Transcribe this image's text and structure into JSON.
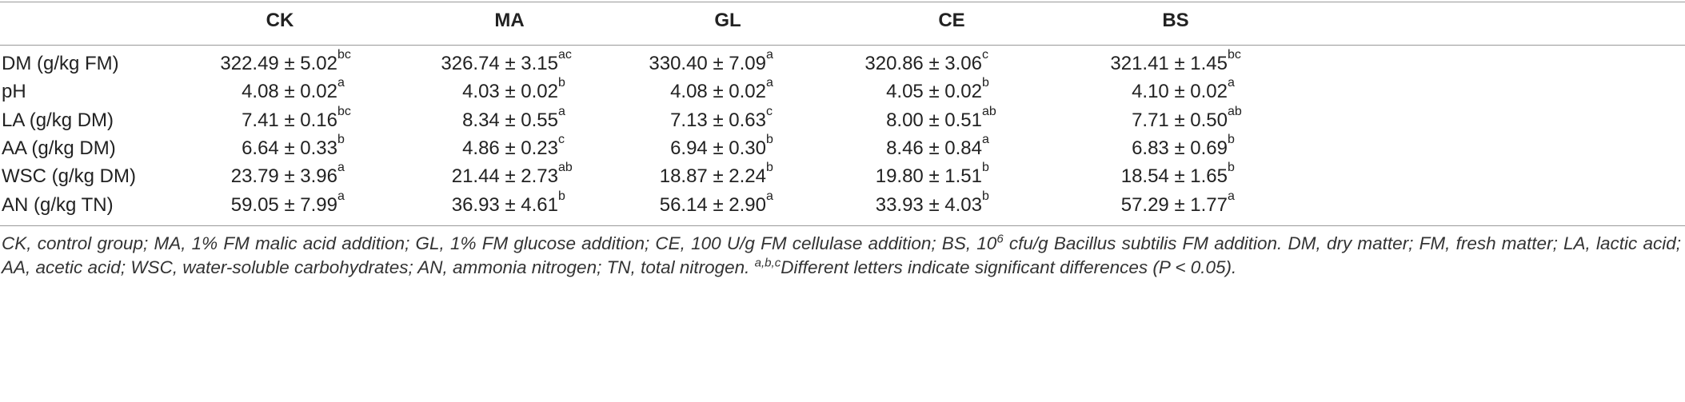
{
  "table": {
    "columns": [
      "CK",
      "MA",
      "GL",
      "CE",
      "BS"
    ],
    "rows": [
      {
        "label": "DM (g/kg FM)",
        "cells": [
          {
            "value": "322.49 ± 5.02",
            "sup": "bc"
          },
          {
            "value": "326.74 ± 3.15",
            "sup": "ac"
          },
          {
            "value": "330.40 ± 7.09",
            "sup": "a"
          },
          {
            "value": "320.86 ± 3.06",
            "sup": "c"
          },
          {
            "value": "321.41 ± 1.45",
            "sup": "bc"
          }
        ]
      },
      {
        "label": "pH",
        "cells": [
          {
            "value": "4.08 ± 0.02",
            "sup": "a"
          },
          {
            "value": "4.03 ± 0.02",
            "sup": "b"
          },
          {
            "value": "4.08 ± 0.02",
            "sup": "a"
          },
          {
            "value": "4.05 ± 0.02",
            "sup": "b"
          },
          {
            "value": "4.10 ± 0.02",
            "sup": "a"
          }
        ]
      },
      {
        "label": "LA (g/kg DM)",
        "cells": [
          {
            "value": "7.41 ± 0.16",
            "sup": "bc"
          },
          {
            "value": "8.34 ± 0.55",
            "sup": "a"
          },
          {
            "value": "7.13 ± 0.63",
            "sup": "c"
          },
          {
            "value": "8.00 ± 0.51",
            "sup": "ab"
          },
          {
            "value": "7.71 ± 0.50",
            "sup": "ab"
          }
        ]
      },
      {
        "label": "AA (g/kg DM)",
        "cells": [
          {
            "value": "6.64 ± 0.33",
            "sup": "b"
          },
          {
            "value": "4.86 ± 0.23",
            "sup": "c"
          },
          {
            "value": "6.94 ± 0.30",
            "sup": "b"
          },
          {
            "value": "8.46 ± 0.84",
            "sup": "a"
          },
          {
            "value": "6.83 ± 0.69",
            "sup": "b"
          }
        ]
      },
      {
        "label": "WSC (g/kg DM)",
        "cells": [
          {
            "value": "23.79 ± 3.96",
            "sup": "a"
          },
          {
            "value": "21.44 ± 2.73",
            "sup": "ab"
          },
          {
            "value": "18.87 ± 2.24",
            "sup": "b"
          },
          {
            "value": "19.80 ± 1.51",
            "sup": "b"
          },
          {
            "value": "18.54 ± 1.65",
            "sup": "b"
          }
        ]
      },
      {
        "label": "AN (g/kg TN)",
        "cells": [
          {
            "value": "59.05 ± 7.99",
            "sup": "a"
          },
          {
            "value": "36.93 ± 4.61",
            "sup": "b"
          },
          {
            "value": "56.14 ± 2.90",
            "sup": "a"
          },
          {
            "value": "33.93 ± 4.03",
            "sup": "b"
          },
          {
            "value": "57.29 ± 1.77",
            "sup": "a"
          }
        ]
      }
    ]
  },
  "footnote": [
    {
      "text": "CK, control group; MA, 1% FM malic acid addition; GL, 1% FM glucose addition; CE, 100 U/g FM cellulase addition; BS, 10"
    },
    {
      "sup": "6"
    },
    {
      "text": " cfu/g Bacillus subtilis FM addition. DM, dry matter; FM, fresh matter; LA, lactic acid; AA, acetic acid; WSC, water-soluble carbohydrates; AN, ammonia nitrogen; TN, total nitrogen. "
    },
    {
      "sup": "a,b,c"
    },
    {
      "text": "Different letters indicate significant differences (P < 0.05)."
    }
  ]
}
